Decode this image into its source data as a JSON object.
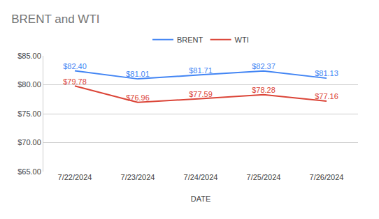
{
  "chart_data": {
    "type": "line",
    "title": "BRENT and WTI",
    "x_label": "DATE",
    "categories": [
      "7/22/2024",
      "7/23/2024",
      "7/24/2024",
      "7/25/2024",
      "7/26/2024"
    ],
    "series": [
      {
        "name": "BRENT",
        "color": "#4285f4",
        "values": [
          82.4,
          81.01,
          81.71,
          82.37,
          81.13
        ],
        "value_labels": [
          "$82.40",
          "$81.01",
          "$81.71",
          "$82.37",
          "$81.13"
        ]
      },
      {
        "name": "WTI",
        "color": "#db4437",
        "values": [
          79.78,
          76.96,
          77.59,
          78.28,
          77.16
        ],
        "value_labels": [
          "$79.78",
          "$76.96",
          "$77.59",
          "$78.28",
          "$77.16"
        ]
      }
    ],
    "ylim": [
      65,
      85
    ],
    "yticks": [
      {
        "value": 65,
        "label": "$65.00"
      },
      {
        "value": 70,
        "label": "$70.00"
      },
      {
        "value": 75,
        "label": "$75.00"
      },
      {
        "value": 80,
        "label": "$80.00"
      },
      {
        "value": 85,
        "label": "$85.00"
      }
    ],
    "grid": true,
    "legend": "top",
    "data_labels": true
  }
}
